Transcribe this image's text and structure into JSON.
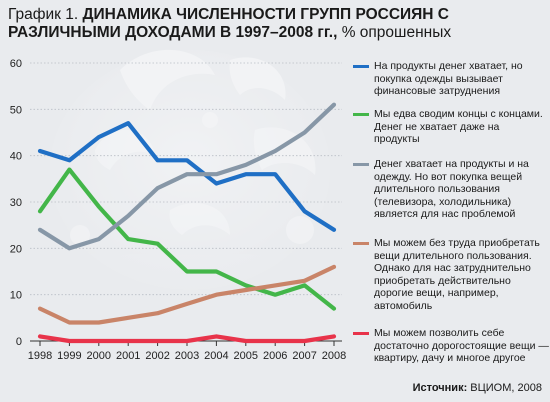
{
  "title": {
    "lead": "График 1. ",
    "bold": "ДИНАМИКА ЧИСЛЕННОСТИ ГРУПП РОССИЯН С РАЗЛИЧНЫМИ ДОХОДАМИ В 1997–2008 гг.,",
    "rest": " % опрошенных"
  },
  "source": {
    "label": "Источник:",
    "value": " ВЦИОМ, 2008"
  },
  "chart_data": {
    "type": "line",
    "title": "График 1. ДИНАМИКА ЧИСЛЕННОСТИ ГРУПП РОССИЯН С РАЗЛИЧНЫМИ ДОХОДАМИ В 1997–2008 гг., % опрошенных",
    "x": [
      "1998",
      "1999",
      "2000",
      "2001",
      "2002",
      "2003",
      "2004",
      "2005",
      "2006",
      "2007",
      "2008"
    ],
    "ylim": [
      0,
      60
    ],
    "yticks": [
      "0",
      "10",
      "20",
      "30",
      "40",
      "50",
      "60"
    ],
    "grid": true,
    "legend_position": "right",
    "series": [
      {
        "name": "На продукты денег хватает, но покупка одежды вызывает финансовые затруднения",
        "color": "#1f6fc5",
        "values": [
          41,
          39,
          44,
          47,
          39,
          39,
          34,
          36,
          36,
          28,
          24
        ]
      },
      {
        "name": "Мы едва сводим концы с концами. Денег не хватает даже на продукты",
        "color": "#43b649",
        "values": [
          28,
          37,
          29,
          22,
          21,
          15,
          15,
          12,
          10,
          12,
          7
        ]
      },
      {
        "name": "Денег хватает на продукты и на одежду. Но вот покупка вещей длительного пользования (телевизора, холодильника) является для нас проблемой",
        "color": "#8797a7",
        "values": [
          24,
          20,
          22,
          27,
          33,
          36,
          36,
          38,
          41,
          45,
          51
        ]
      },
      {
        "name": "Мы можем без труда приобретать вещи длительного пользования. Однако для нас затруднительно приобретать действительно дорогие вещи, например, автомобиль",
        "color": "#c98468",
        "values": [
          7,
          4,
          4,
          5,
          6,
          8,
          10,
          11,
          12,
          13,
          16
        ]
      },
      {
        "name": "Мы можем позволить себе достаточно дорогостоящие вещи — квартиру, дачу и многое другое",
        "color": "#e8334a",
        "values": [
          1,
          0,
          0,
          0,
          0,
          0,
          1,
          0,
          0,
          0,
          1
        ]
      }
    ]
  }
}
